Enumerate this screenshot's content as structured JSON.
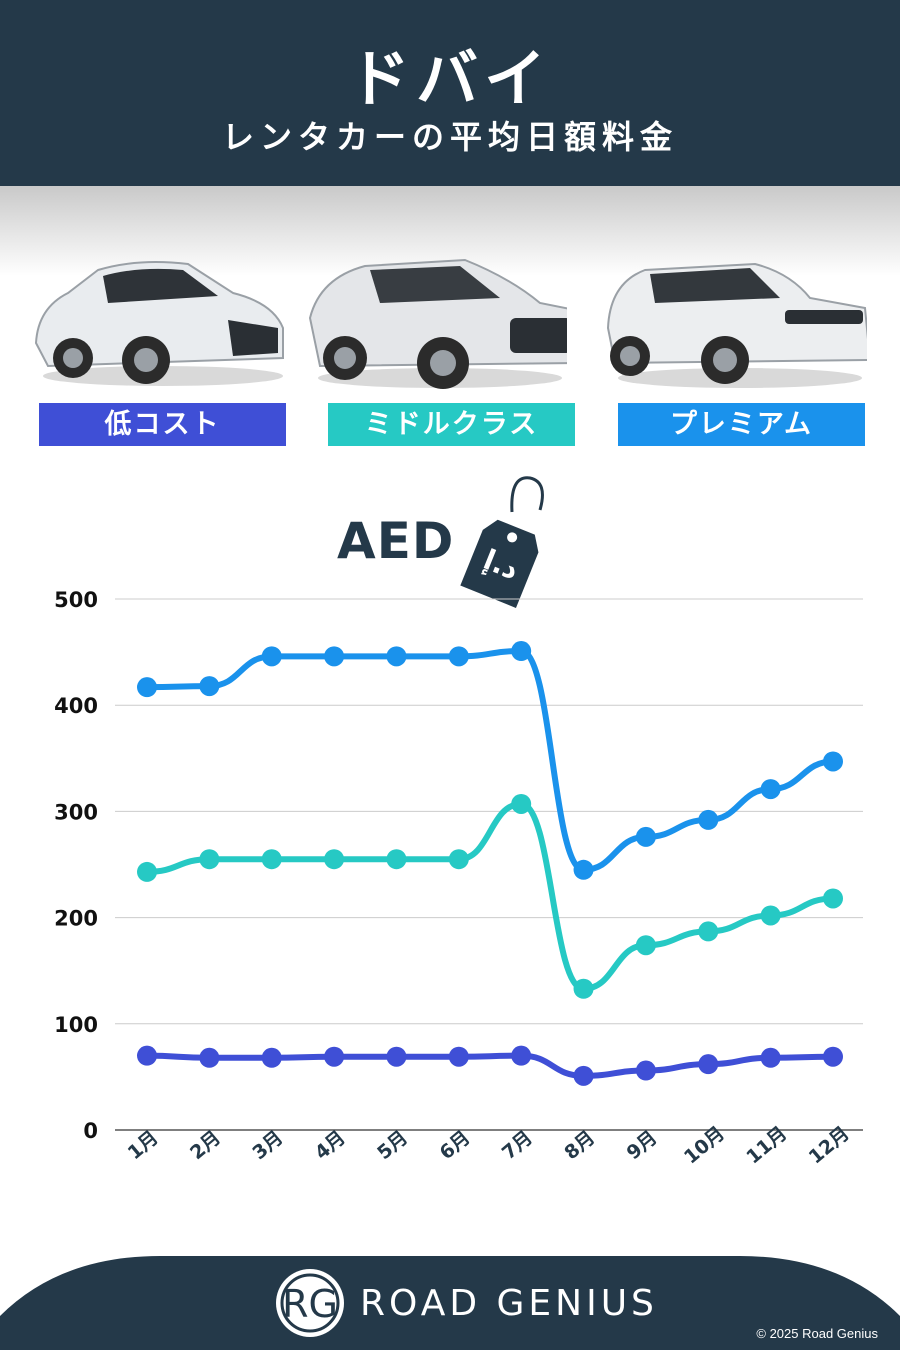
{
  "header": {
    "title": "ドバイ",
    "subtitle": "レンタカーの平均日額料金"
  },
  "categories": [
    {
      "label": "低コスト",
      "color": "#3f4fd6"
    },
    {
      "label": "ミドルクラス",
      "color": "#26c9c4"
    },
    {
      "label": "プレミアム",
      "color": "#1a92ec"
    }
  ],
  "currency": {
    "code": "AED",
    "tag_text": "د.إ"
  },
  "chart_data": {
    "type": "line",
    "categories": [
      "1月",
      "2月",
      "3月",
      "4月",
      "5月",
      "6月",
      "7月",
      "8月",
      "9月",
      "10月",
      "11月",
      "12月"
    ],
    "series": [
      {
        "name": "低コスト",
        "color": "#3f4fd6",
        "values": [
          70,
          68,
          68,
          69,
          69,
          69,
          70,
          51,
          56,
          62,
          68,
          69
        ]
      },
      {
        "name": "ミドルクラス",
        "color": "#26c9c4",
        "values": [
          243,
          255,
          255,
          255,
          255,
          255,
          307,
          133,
          174,
          187,
          202,
          218
        ]
      },
      {
        "name": "プレミアム",
        "color": "#1a92ec",
        "values": [
          417,
          418,
          446,
          446,
          446,
          446,
          451,
          245,
          276,
          292,
          321,
          347
        ]
      }
    ],
    "ylim": [
      0,
      500
    ],
    "yticks": [
      0,
      100,
      200,
      300,
      400,
      500
    ],
    "grid": true
  },
  "footer": {
    "logo_mark": "RG",
    "brand": "ROAD GENIUS",
    "copyright": "© 2025 Road Genius",
    "background": "#243949"
  }
}
